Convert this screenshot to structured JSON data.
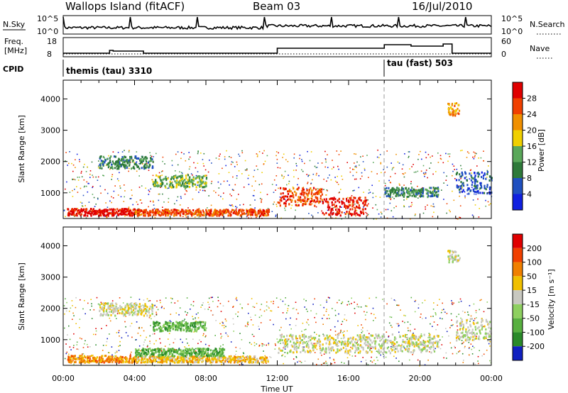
{
  "header": {
    "station": "Wallops Island (fitACF)",
    "beam": "Beam 03",
    "date": "16/Jul/2010"
  },
  "left_labels": {
    "nsky": "N.Sky",
    "freq_line1": "Freq.",
    "freq_line2": "[MHz]",
    "cpid": "CPID"
  },
  "right_labels": {
    "nsearch": "N.Search",
    "nave": "Nave"
  },
  "nsky_axis": {
    "top_left": "10^5",
    "bottom_left": "10^0",
    "top_right": "10^5",
    "bottom_right": "10^0"
  },
  "freq_axis": {
    "top": "18",
    "bottom": "8",
    "right_top": "60",
    "right_bottom": "0"
  },
  "cpid_entries": [
    {
      "label": "themis (tau) 3310",
      "start_hour": 0
    },
    {
      "label": "tau (fast) 503",
      "start_hour": 18
    }
  ],
  "chart_data": [
    {
      "type": "heatmap",
      "name": "power",
      "ylabel": "Slant Range [km]",
      "xlabel": "Time UT",
      "x_ticks": [
        "00:00",
        "04:00",
        "08:00",
        "12:00",
        "16:00",
        "20:00",
        "00:00"
      ],
      "x_range_hours": [
        0,
        24
      ],
      "y_ticks": [
        1000,
        2000,
        3000,
        4000
      ],
      "y_range_km": [
        180,
        4600
      ],
      "colorbar": {
        "label": "Power [dB]",
        "ticks": [
          4,
          8,
          12,
          16,
          20,
          24,
          28
        ],
        "colors": [
          "#1020e0",
          "#2050c0",
          "#2e7a3a",
          "#5aa85a",
          "#f0d000",
          "#f09000",
          "#f04000",
          "#e00000"
        ]
      },
      "bands": [
        {
          "t0": 0.2,
          "t1": 4.0,
          "r0": 300,
          "r1": 520,
          "level": 7
        },
        {
          "t0": 4.0,
          "t1": 11.5,
          "r0": 300,
          "r1": 500,
          "level": 6
        },
        {
          "t0": 12.0,
          "t1": 14.5,
          "r0": 600,
          "r1": 1200,
          "level": 6
        },
        {
          "t0": 14.5,
          "t1": 17.0,
          "r0": 300,
          "r1": 900,
          "level": 7
        },
        {
          "t0": 2.0,
          "t1": 5.0,
          "r0": 1800,
          "r1": 2200,
          "level": 2
        },
        {
          "t0": 5.0,
          "t1": 8.0,
          "r0": 1200,
          "r1": 1600,
          "level": 3
        },
        {
          "t0": 18.0,
          "t1": 21.0,
          "r0": 900,
          "r1": 1200,
          "level": 2
        },
        {
          "t0": 22.0,
          "t1": 24.0,
          "r0": 1000,
          "r1": 1700,
          "level": 1
        },
        {
          "t0": 21.5,
          "t1": 22.2,
          "r0": 3500,
          "r1": 3900,
          "level": 5
        }
      ]
    },
    {
      "type": "heatmap",
      "name": "velocity",
      "ylabel": "Slant Range [km]",
      "xlabel": "Time UT",
      "x_ticks": [
        "00:00",
        "04:00",
        "08:00",
        "12:00",
        "16:00",
        "20:00",
        "00:00"
      ],
      "x_range_hours": [
        0,
        24
      ],
      "y_ticks": [
        1000,
        2000,
        3000,
        4000
      ],
      "y_range_km": [
        180,
        4600
      ],
      "colorbar": {
        "label": "Velocity [m s⁻¹]",
        "ticks": [
          200,
          100,
          50,
          15,
          -15,
          -50,
          -100,
          -200
        ],
        "colors": [
          "#1020c0",
          "#2a8a2a",
          "#58b040",
          "#8ed060",
          "#c8c8c0",
          "#f0c000",
          "#f08000",
          "#f04000",
          "#e00000"
        ]
      },
      "bands": [
        {
          "t0": 0.2,
          "t1": 4.0,
          "r0": 300,
          "r1": 520,
          "level": 6
        },
        {
          "t0": 4.0,
          "t1": 11.5,
          "r0": 300,
          "r1": 500,
          "level": 5
        },
        {
          "t0": 4.0,
          "t1": 9.0,
          "r0": 500,
          "r1": 750,
          "level": 2
        },
        {
          "t0": 12.0,
          "t1": 21.0,
          "r0": 600,
          "r1": 1200,
          "level": 4
        },
        {
          "t0": 2.0,
          "t1": 5.0,
          "r0": 1800,
          "r1": 2200,
          "level": 4
        },
        {
          "t0": 5.0,
          "t1": 8.0,
          "r0": 1300,
          "r1": 1600,
          "level": 2
        },
        {
          "t0": 22.0,
          "t1": 24.0,
          "r0": 1000,
          "r1": 1700,
          "level": 4
        },
        {
          "t0": 21.5,
          "t1": 22.2,
          "r0": 3500,
          "r1": 3900,
          "level": 4
        }
      ]
    }
  ]
}
